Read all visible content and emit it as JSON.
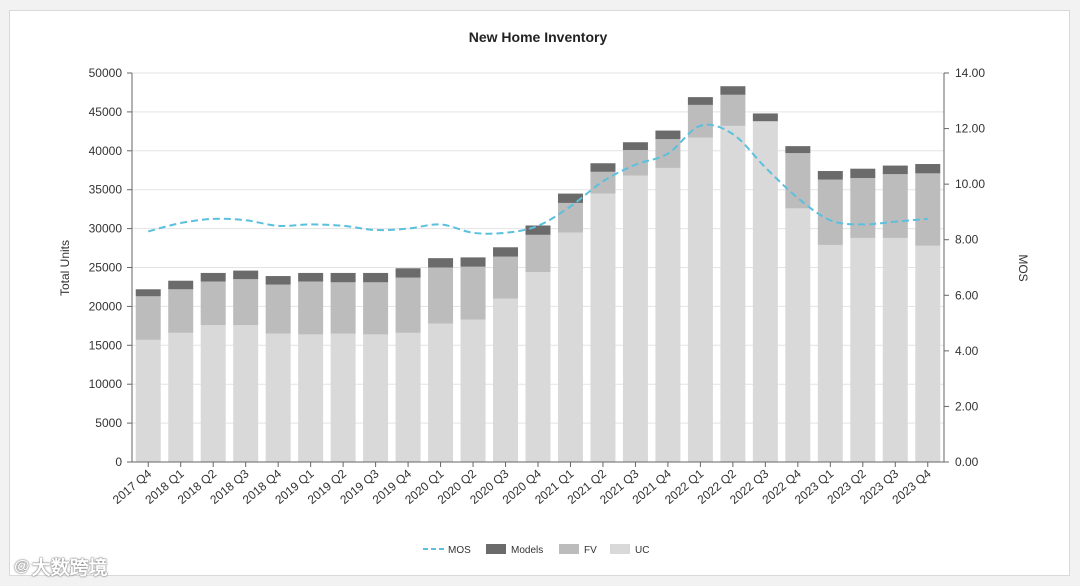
{
  "watermark": {
    "logo_text": "@",
    "text": "大数跨境"
  },
  "colors": {
    "uc": "#d9d9d9",
    "fv": "#bcbcbc",
    "models": "#6b6b6b",
    "mos": "#5bc0de"
  },
  "chart_data": {
    "type": "bar",
    "stacked": true,
    "title": "New Home Inventory",
    "ylabel": "Total Units",
    "y2label": "MOS",
    "ylim": [
      0,
      50000
    ],
    "y2lim": [
      0,
      14
    ],
    "yticks": [
      "50000",
      "45000",
      "40000",
      "35000",
      "30000",
      "25000",
      "20000",
      "15000",
      "10000",
      "5000",
      "0"
    ],
    "y2ticks": [
      "14.00",
      "12.00",
      "10.00",
      "8.00",
      "6.00",
      "4.00",
      "2.00",
      "0.00"
    ],
    "categories": [
      "2017 Q4",
      "2018 Q1",
      "2018 Q2",
      "2018 Q3",
      "2018 Q4",
      "2019 Q1",
      "2019 Q2",
      "2019 Q3",
      "2019 Q4",
      "2020 Q1",
      "2020 Q2",
      "2020 Q3",
      "2020 Q4",
      "2021 Q1",
      "2021 Q2",
      "2021 Q3",
      "2021 Q4",
      "2022 Q1",
      "2022 Q2",
      "2022 Q3",
      "2022 Q4",
      "2023 Q1",
      "2023 Q2",
      "2023 Q3",
      "2023 Q4"
    ],
    "series": [
      {
        "name": "UC",
        "values": [
          15700,
          16600,
          17600,
          17600,
          16500,
          16400,
          16500,
          16400,
          16600,
          17800,
          18300,
          21000,
          24400,
          29500,
          34500,
          36800,
          37800,
          41700,
          43200,
          43800,
          32600,
          27900,
          28800,
          28800,
          27800
        ]
      },
      {
        "name": "FV",
        "values": [
          5600,
          5600,
          5600,
          5900,
          6300,
          6800,
          6600,
          6700,
          7100,
          7200,
          6800,
          5400,
          4800,
          3800,
          2800,
          3300,
          3700,
          4200,
          4000,
          0,
          7100,
          8400,
          7700,
          8200,
          9300
        ]
      },
      {
        "name": "Models",
        "values": [
          900,
          1100,
          1100,
          1100,
          1100,
          1100,
          1200,
          1200,
          1200,
          1200,
          1200,
          1200,
          1200,
          1200,
          1100,
          1000,
          1100,
          1000,
          1100,
          1000,
          900,
          1100,
          1200,
          1100,
          1200
        ]
      }
    ],
    "line": {
      "name": "MOS",
      "axis": "right",
      "values": [
        8.3,
        8.6,
        8.75,
        8.7,
        8.5,
        8.55,
        8.5,
        8.35,
        8.4,
        8.55,
        8.25,
        8.25,
        8.5,
        9.2,
        10.1,
        10.7,
        11.1,
        12.1,
        11.8,
        10.6,
        9.5,
        8.7,
        8.55,
        8.65,
        8.75
      ]
    },
    "legend": [
      "MOS",
      "Models",
      "FV",
      "UC"
    ],
    "legend_position": "bottom",
    "grid": true
  }
}
